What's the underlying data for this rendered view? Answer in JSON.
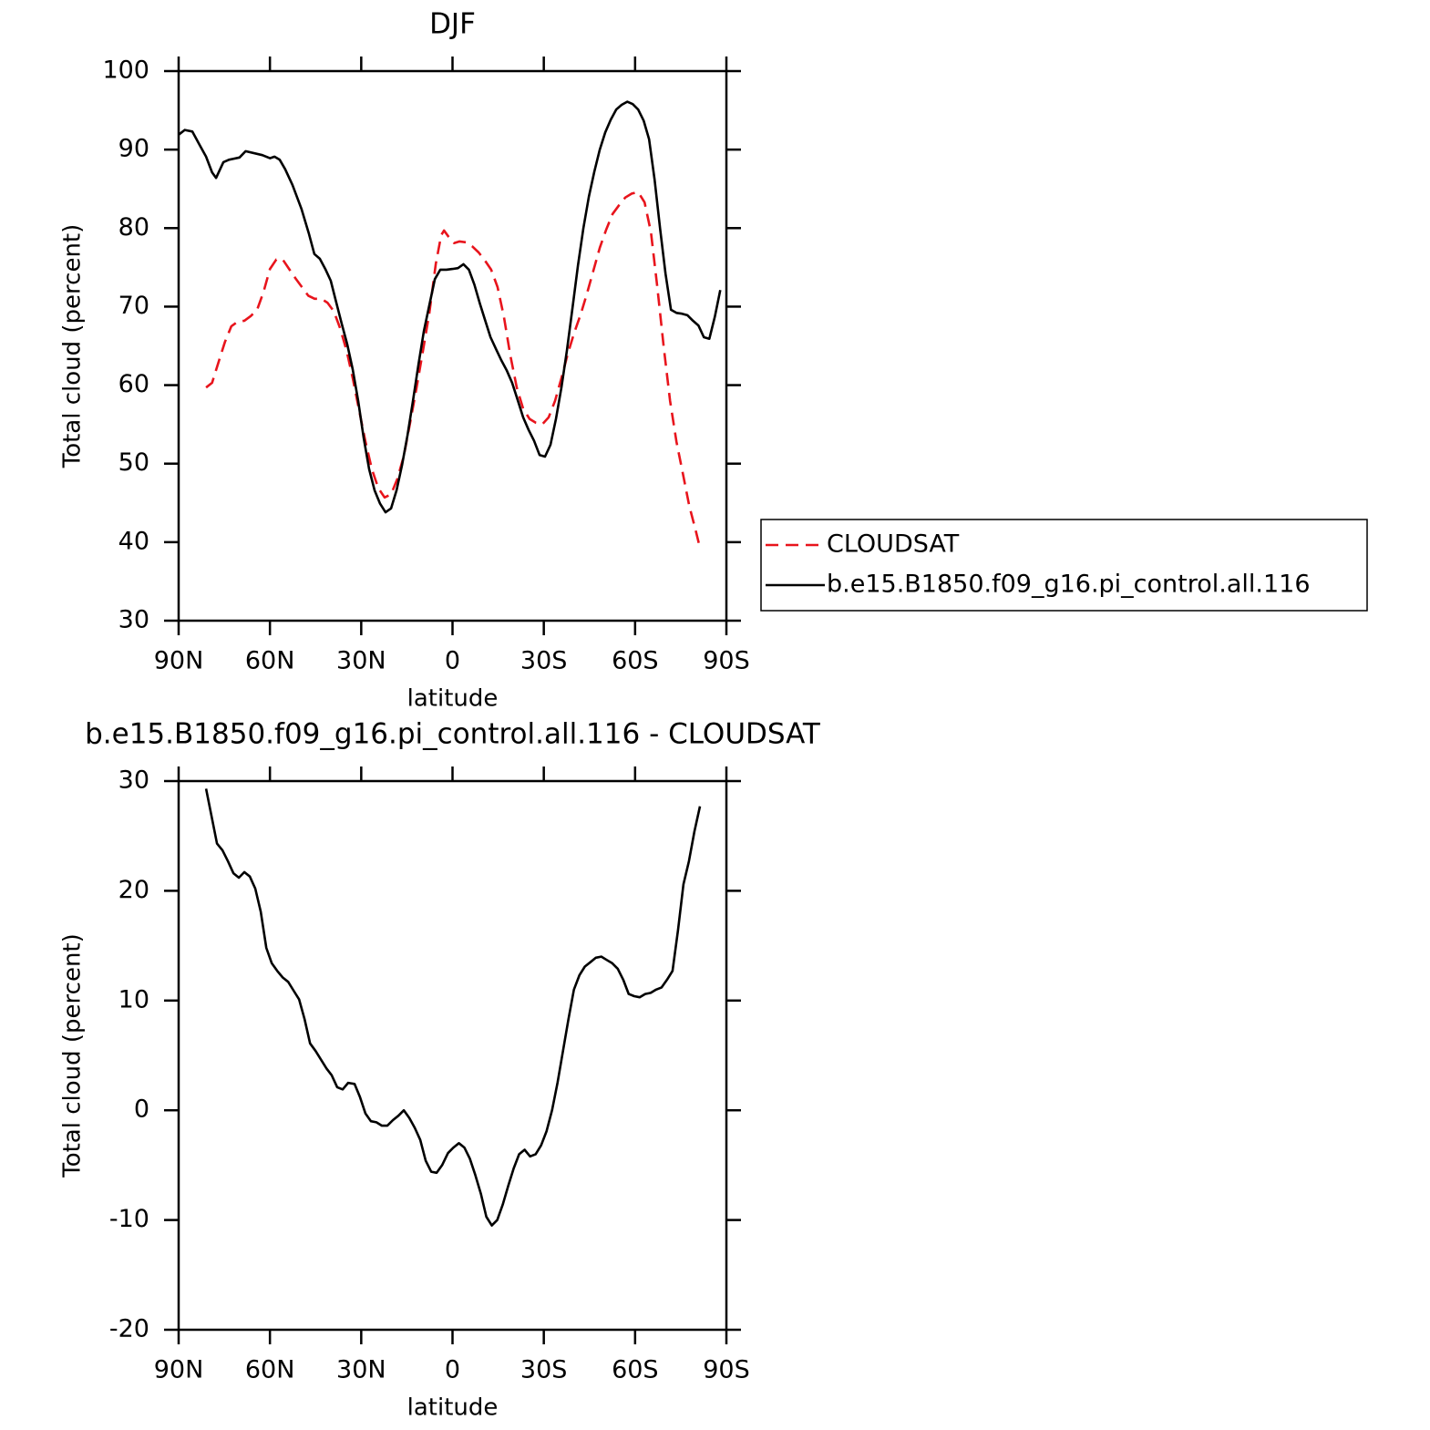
{
  "chart_data": [
    {
      "type": "line",
      "title": "DJF",
      "xlabel": "latitude",
      "ylabel": "Total cloud (percent)",
      "xlim": [
        90,
        -90
      ],
      "xticks": [
        {
          "value": 90,
          "label": "90N"
        },
        {
          "value": 60,
          "label": "60N"
        },
        {
          "value": 30,
          "label": "30N"
        },
        0,
        {
          "value": -30,
          "label": "30S"
        },
        {
          "value": -60,
          "label": "60S"
        },
        {
          "value": -90,
          "label": "90S"
        }
      ],
      "ylim": [
        30,
        100
      ],
      "yticks": [
        30,
        40,
        50,
        60,
        70,
        80,
        90,
        100
      ],
      "legend": "right",
      "series": [
        {
          "name": "CLOUDSAT",
          "color": "#e8141c",
          "linestyle": "dashed",
          "x": [
            81,
            79,
            76.9,
            74.8,
            72.7,
            70.5,
            68.4,
            66.3,
            64.2,
            62.1,
            60,
            57.9,
            55.8,
            53.7,
            51.6,
            49.5,
            47.4,
            45.3,
            43.2,
            41.1,
            39,
            37,
            34.8,
            32.8,
            30.7,
            28.6,
            26.5,
            24.4,
            22.3,
            20.2,
            18.1,
            16,
            14,
            11.8,
            9.7,
            7.6,
            5.5,
            3.7,
            2.8,
            1.3,
            -0.5,
            -2.3,
            -4.4,
            -6.4,
            -8.6,
            -10.6,
            -12.7,
            -14.8,
            -16.9,
            -19,
            -21.1,
            -23.2,
            -25.3,
            -27.4,
            -29.5,
            -31.6,
            -33.7,
            -35.8,
            -37.9,
            -40,
            -42.1,
            -44.2,
            -46.3,
            -48.4,
            -50.5,
            -52.6,
            -54.7,
            -56.8,
            -58.9,
            -61,
            -63.1,
            -65.2,
            -67.3,
            -69.4,
            -71.5,
            -73.6,
            -75.7,
            -77.8,
            -79.9,
            -81.1
          ],
          "values": [
            59.7,
            60.3,
            62.9,
            65.5,
            67.5,
            68.1,
            68.2,
            68.8,
            69.6,
            71.9,
            74.8,
            76.0,
            76.0,
            74.8,
            73.6,
            72.5,
            71.4,
            71.0,
            71.0,
            70.5,
            69.4,
            67.3,
            64.4,
            60.9,
            56.8,
            52.8,
            49.3,
            46.9,
            45.7,
            46.1,
            48.1,
            51.0,
            55.1,
            59.7,
            64.4,
            69.2,
            75.4,
            79.1,
            79.7,
            78.9,
            78.1,
            78.3,
            78.2,
            77.7,
            76.9,
            75.9,
            74.7,
            72.5,
            68.7,
            63.8,
            59.7,
            57.0,
            55.7,
            55.2,
            55.0,
            55.9,
            58.0,
            60.9,
            64.0,
            66.7,
            69.0,
            71.7,
            74.6,
            77.5,
            79.8,
            81.8,
            82.9,
            83.9,
            84.4,
            84.6,
            83.3,
            79.5,
            72.5,
            64.9,
            58.0,
            52.8,
            48.7,
            44.6,
            41.5,
            39.6
          ]
        },
        {
          "name": "b.e15.B1850.f09_g16.pi_control.all.116",
          "color": "#000000",
          "linestyle": "solid",
          "x": [
            90,
            88,
            85.5,
            83,
            81,
            79,
            77.7,
            75.3,
            73.5,
            70,
            68,
            62.5,
            60,
            58.5,
            56.8,
            55,
            52.6,
            49.6,
            47.2,
            45.4,
            43.6,
            41.8,
            40,
            38.2,
            36.4,
            34.6,
            32.8,
            31,
            29.2,
            27.4,
            25.6,
            23.8,
            22,
            20.2,
            18.4,
            16.6,
            14.8,
            13,
            11.2,
            9.4,
            7.6,
            5.8,
            4,
            2,
            0,
            -1.8,
            -3.6,
            -5.4,
            -7.2,
            -9,
            -10.6,
            -12.5,
            -14.3,
            -16,
            -17.8,
            -19.6,
            -21.5,
            -23.2,
            -25,
            -26.8,
            -28.6,
            -30.4,
            -32.2,
            -34,
            -35.8,
            -37.6,
            -39.4,
            -41.2,
            -43,
            -44.8,
            -46.6,
            -48.4,
            -50.2,
            -52,
            -53.8,
            -55.6,
            -57.4,
            -59.2,
            -61,
            -62.8,
            -64.6,
            -66.4,
            -68.2,
            -70,
            -71.8,
            -73.6,
            -75.4,
            -77.2,
            -79,
            -80.8,
            -82.6,
            -84.4,
            -86.2,
            -88
          ],
          "values": [
            91.9,
            92.5,
            92.3,
            90.5,
            89.1,
            87.1,
            86.4,
            88.4,
            88.7,
            89.0,
            89.8,
            89.3,
            88.9,
            89.1,
            88.7,
            87.5,
            85.5,
            82.4,
            79.3,
            76.7,
            76.1,
            74.8,
            73.3,
            70.5,
            67.8,
            65.2,
            62.0,
            58.0,
            53.3,
            49.3,
            46.6,
            44.9,
            43.8,
            44.3,
            46.6,
            49.8,
            53.6,
            58.0,
            62.6,
            66.9,
            70.2,
            73.5,
            74.7,
            74.7,
            74.8,
            74.9,
            75.4,
            74.7,
            72.8,
            70.4,
            68.4,
            66.1,
            64.6,
            63.2,
            61.9,
            60.3,
            58.0,
            55.9,
            54.3,
            52.9,
            51.1,
            50.9,
            52.4,
            55.7,
            59.7,
            64.4,
            69.8,
            75.2,
            80.0,
            84.0,
            87.2,
            90.0,
            92.2,
            93.8,
            95.1,
            95.7,
            96.1,
            95.8,
            95.1,
            93.7,
            91.3,
            86.2,
            80.0,
            74.2,
            69.6,
            69.2,
            69.1,
            68.9,
            68.2,
            67.6,
            66.1,
            65.9,
            68.7,
            72.1
          ]
        }
      ]
    },
    {
      "type": "line",
      "title": "b.e15.B1850.f09_g16.pi_control.all.116 - CLOUDSAT",
      "xlabel": "latitude",
      "ylabel": "Total cloud (percent)",
      "xlim": [
        90,
        -90
      ],
      "xticks": [
        {
          "value": 90,
          "label": "90N"
        },
        {
          "value": 60,
          "label": "60N"
        },
        {
          "value": 30,
          "label": "30N"
        },
        0,
        {
          "value": -30,
          "label": "30S"
        },
        {
          "value": -60,
          "label": "60S"
        },
        {
          "value": -90,
          "label": "90S"
        }
      ],
      "ylim": [
        -20,
        30
      ],
      "yticks": [
        -20,
        -10,
        0,
        10,
        20,
        30
      ],
      "series": [
        {
          "color": "#000000",
          "linestyle": "solid",
          "x": [
            81,
            79.2,
            77.4,
            75.6,
            73.8,
            72,
            70.2,
            68.4,
            66.6,
            64.8,
            63,
            61.2,
            59.4,
            57.6,
            55.8,
            54,
            52.2,
            50.4,
            48.6,
            46.8,
            45,
            43.2,
            41.4,
            39.7,
            37.9,
            36.1,
            34.3,
            32.2,
            30.4,
            28.6,
            26.8,
            25,
            23.2,
            21.4,
            19.6,
            17.8,
            16,
            14.2,
            12.4,
            10.6,
            8.8,
            7,
            5.2,
            3.4,
            1.5,
            -0.3,
            -2.1,
            -3.9,
            -5.7,
            -7.5,
            -9.3,
            -11.1,
            -12.9,
            -14.7,
            -16.5,
            -18.3,
            -20.1,
            -21.9,
            -23.7,
            -25.5,
            -27.3,
            -29.1,
            -30.9,
            -32.7,
            -34.5,
            -36.3,
            -38.1,
            -39.9,
            -41.7,
            -43.5,
            -45.3,
            -47.1,
            -48.9,
            -50.7,
            -52.5,
            -54.3,
            -56.1,
            -57.9,
            -59.7,
            -61.5,
            -63.3,
            -65.1,
            -66.9,
            -68.7,
            -70.5,
            -72.3,
            -74.1,
            -75.9,
            -77.7,
            -79.5,
            -81.3
          ],
          "values": [
            29.3,
            26.8,
            24.3,
            23.7,
            22.7,
            21.6,
            21.2,
            21.7,
            21.3,
            20.2,
            18.1,
            14.8,
            13.4,
            12.7,
            12.1,
            11.7,
            10.9,
            10.1,
            8.3,
            6.1,
            5.4,
            4.6,
            3.8,
            3.2,
            2.1,
            1.9,
            2.5,
            2.4,
            1.2,
            -0.3,
            -1.0,
            -1.1,
            -1.4,
            -1.4,
            -0.9,
            -0.5,
            0.0,
            -0.7,
            -1.6,
            -2.7,
            -4.6,
            -5.6,
            -5.7,
            -5.0,
            -3.9,
            -3.4,
            -3.0,
            -3.4,
            -4.4,
            -5.9,
            -7.6,
            -9.7,
            -10.5,
            -10.0,
            -8.6,
            -6.9,
            -5.3,
            -4.0,
            -3.6,
            -4.2,
            -4.0,
            -3.2,
            -1.9,
            0.0,
            2.5,
            5.4,
            8.3,
            11.0,
            12.3,
            13.1,
            13.5,
            13.9,
            14.0,
            13.7,
            13.4,
            12.9,
            11.9,
            10.6,
            10.4,
            10.3,
            10.6,
            10.7,
            11.0,
            11.2,
            11.9,
            12.7,
            16.4,
            20.6,
            22.7,
            25.4,
            27.7
          ]
        }
      ]
    }
  ]
}
